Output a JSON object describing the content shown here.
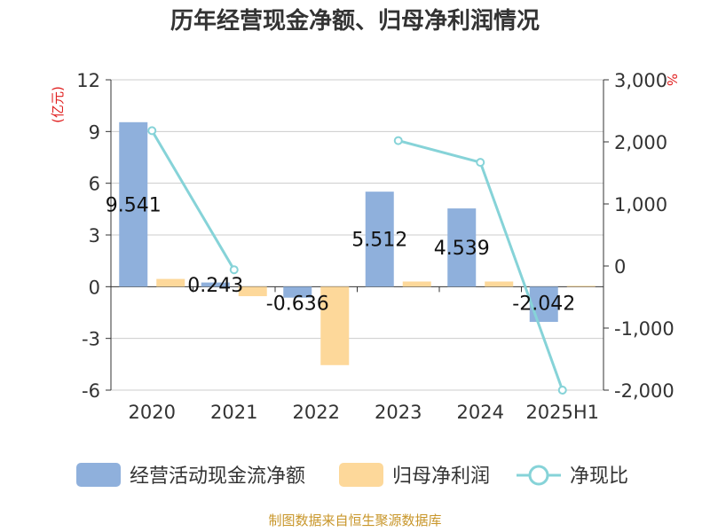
{
  "chart_data": {
    "type": "bar",
    "title": "历年经营现金净额、归母净利润情况",
    "categories": [
      "2020",
      "2021",
      "2022",
      "2023",
      "2024",
      "2025H1"
    ],
    "series": [
      {
        "name": "经营活动现金流净额",
        "type": "bar",
        "axis": "left",
        "color": "#8fb0dc",
        "values": [
          9.541,
          0.243,
          -0.636,
          5.512,
          4.539,
          -2.042
        ],
        "labels": [
          "9.541",
          "0.243",
          "-0.636",
          "5.512",
          "4.539",
          "-2.042"
        ]
      },
      {
        "name": "归母净利润",
        "type": "bar",
        "axis": "left",
        "color": "#fdd89a",
        "values": [
          0.45,
          -0.55,
          -4.55,
          0.3,
          0.3,
          0.05
        ]
      },
      {
        "name": "净现比",
        "type": "line",
        "axis": "right",
        "color": "#86d3d8",
        "values": [
          2180,
          -60,
          null,
          2020,
          1670,
          -2000
        ]
      }
    ],
    "y_left": {
      "unit": "(亿元)",
      "min": -6,
      "max": 12,
      "ticks": [
        12,
        9,
        6,
        3,
        0,
        -3,
        -6
      ],
      "tick_labels": [
        "12",
        "9",
        "6",
        "3",
        "0",
        "-3",
        "-6"
      ]
    },
    "y_right": {
      "unit": "%",
      "min": -2000,
      "max": 3000,
      "ticks": [
        3000,
        2000,
        1000,
        0,
        -1000,
        -2000
      ],
      "tick_labels": [
        "3,000",
        "2,000",
        "1,000",
        "0",
        "-1,000",
        "-2,000"
      ]
    },
    "grid": true,
    "legend_position": "bottom"
  },
  "source": "制图数据来自恒生聚源数据库"
}
